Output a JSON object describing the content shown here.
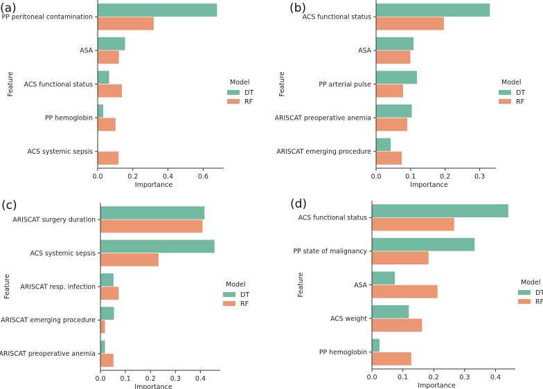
{
  "chart_data": [
    {
      "type": "bar",
      "orientation": "horizontal",
      "panel_label": "(a)",
      "categories": [
        "PP peritoneal contamination",
        "ASA",
        "ACS functional status",
        "PP hemoglobin",
        "ACS systemic sepsis"
      ],
      "series": [
        {
          "name": "DT",
          "values": [
            0.68,
            0.157,
            0.066,
            0.033,
            0.0
          ]
        },
        {
          "name": "RF",
          "values": [
            0.32,
            0.122,
            0.139,
            0.103,
            0.12
          ]
        }
      ],
      "xlabel": "Importance",
      "ylabel": "Feature",
      "xlim": [
        0,
        0.717
      ],
      "xticks": [
        "0.0",
        "0.2",
        "0.4",
        "0.6"
      ],
      "xtick_values": [
        0,
        0.2,
        0.4,
        0.6
      ],
      "legend_title": "Model",
      "legend_placement": "right",
      "grid": false
    },
    {
      "type": "bar",
      "orientation": "horizontal",
      "panel_label": "(b)",
      "categories": [
        "ACS functional status",
        "ASA",
        "PP arterial pulse",
        "ARISCAT preoperative anemia",
        "ARISCAT emerging procedure"
      ],
      "series": [
        {
          "name": "DT",
          "values": [
            0.33,
            0.109,
            0.119,
            0.104,
            0.043
          ]
        },
        {
          "name": "RF",
          "values": [
            0.197,
            0.1,
            0.079,
            0.091,
            0.075
          ]
        }
      ],
      "xlabel": "Importance",
      "ylabel": "Feature",
      "xlim": [
        0,
        0.347
      ],
      "xticks": [
        "0.0",
        "0.1",
        "0.2",
        "0.3"
      ],
      "xtick_values": [
        0,
        0.1,
        0.2,
        0.3
      ],
      "legend_title": "Model",
      "legend_placement": "right",
      "grid": false
    },
    {
      "type": "bar",
      "orientation": "horizontal",
      "panel_label": "(c)",
      "categories": [
        "ARISCAT surgery duration",
        "ACS systemic sepsis",
        "ARISCAT resp. infection",
        "ARISCAT emerging procedure",
        "ARISCAT preoperative anemia"
      ],
      "series": [
        {
          "name": "DT",
          "values": [
            0.417,
            0.457,
            0.053,
            0.055,
            0.019
          ]
        },
        {
          "name": "RF",
          "values": [
            0.409,
            0.233,
            0.074,
            0.019,
            0.053
          ]
        }
      ],
      "xlabel": "Importance",
      "ylabel": "Feature",
      "xlim": [
        0,
        0.479
      ],
      "xticks": [
        "0.0",
        "0.1",
        "0.2",
        "0.3",
        "0.4"
      ],
      "xtick_values": [
        0,
        0.1,
        0.2,
        0.3,
        0.4
      ],
      "legend_title": "Model",
      "legend_placement": "right",
      "grid": false
    },
    {
      "type": "bar",
      "orientation": "horizontal",
      "panel_label": "(d)",
      "categories": [
        "ACS functional status",
        "PP state of malignancy",
        "ASA",
        "ACS weight",
        "PP hemoglobin"
      ],
      "series": [
        {
          "name": "DT",
          "values": [
            0.442,
            0.333,
            0.075,
            0.12,
            0.025
          ]
        },
        {
          "name": "RF",
          "values": [
            0.267,
            0.184,
            0.213,
            0.163,
            0.128
          ]
        }
      ],
      "xlabel": "Importance",
      "ylabel": "Feature",
      "xlim": [
        0,
        0.464
      ],
      "xticks": [
        "0.0",
        "0.1",
        "0.2",
        "0.3",
        "0.4"
      ],
      "xtick_values": [
        0,
        0.1,
        0.2,
        0.3,
        0.4
      ],
      "legend_title": "Model",
      "legend_placement": "right",
      "grid": false
    }
  ],
  "colors": {
    "DT": "#73b8a1",
    "RF": "#eb9773",
    "axis": "#333333"
  }
}
